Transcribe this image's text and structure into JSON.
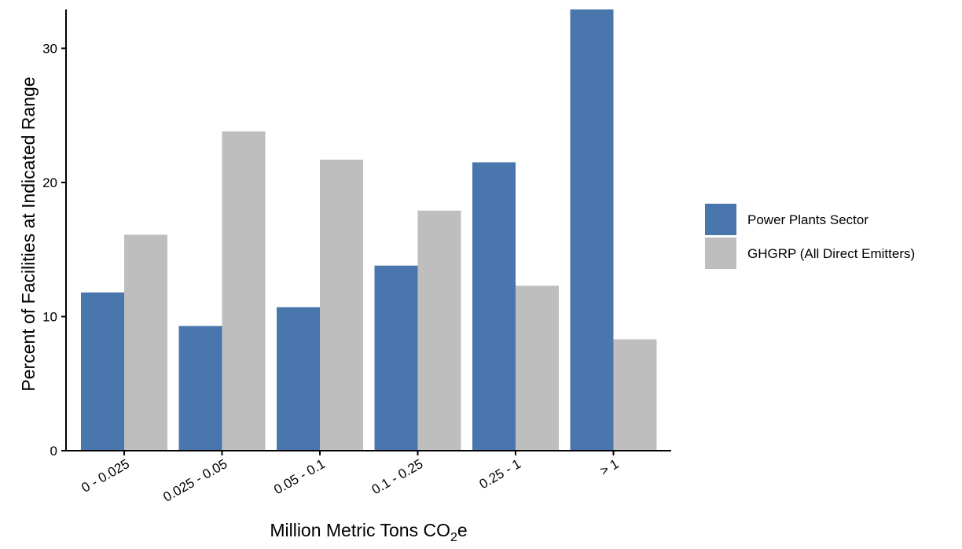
{
  "chart_data": {
    "type": "bar",
    "title": "",
    "xlabel": "Million Metric Tons CO2e",
    "xlabel_parts": {
      "prefix": "Million Metric Tons CO",
      "subscript": "2",
      "suffix": "e"
    },
    "ylabel": "Percent of Facilities at Indicated Range",
    "categories": [
      "0 - 0.025",
      "0.025 - 0.05",
      "0.05 - 0.1",
      "0.1 - 0.25",
      "0.25 - 1",
      "> 1"
    ],
    "series": [
      {
        "name": "Power Plants Sector",
        "color": "#4a76ae",
        "values": [
          11.8,
          9.3,
          10.7,
          13.8,
          21.5,
          32.9
        ]
      },
      {
        "name": "GHGRP (All Direct Emitters)",
        "color": "#bebebe",
        "values": [
          16.1,
          23.8,
          21.7,
          17.9,
          12.3,
          8.3
        ]
      }
    ],
    "ylim": [
      0,
      32.9
    ],
    "yticks": [
      0,
      10,
      20,
      30
    ],
    "grid": false,
    "legend_position": "right"
  }
}
